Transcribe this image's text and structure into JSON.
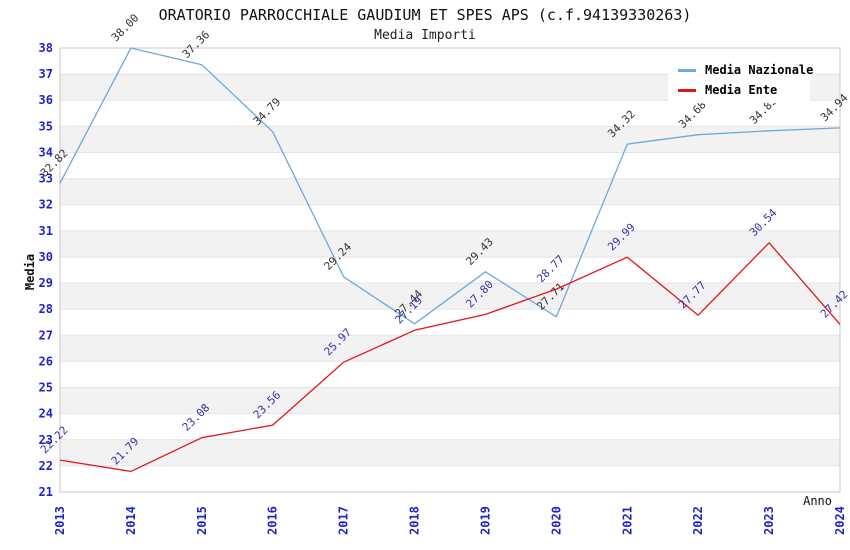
{
  "chart_data": {
    "type": "line",
    "title": "ORATORIO PARROCCHIALE GAUDIUM ET SPES APS (c.f.94139330263)",
    "subtitle": "Media Importi",
    "xlabel": "Anno",
    "ylabel": "Media",
    "x": [
      "2013",
      "2014",
      "2015",
      "2016",
      "2017",
      "2018",
      "2019",
      "2020",
      "2021",
      "2022",
      "2023",
      "2024"
    ],
    "ylim": [
      21,
      38
    ],
    "y_tick_step": 1,
    "grid": "horizontal-bands-alternating",
    "legend_position": "top-right-inside",
    "series": [
      {
        "name": "Media Nazionale",
        "color": "#6FA8DC",
        "label_color": "#333333",
        "values": [
          32.82,
          38.0,
          37.36,
          34.79,
          29.24,
          27.44,
          29.43,
          27.71,
          34.32,
          34.68,
          34.83,
          34.94
        ],
        "labels": [
          "32.82",
          "38.00",
          "37.36",
          "34.79",
          "29.24",
          "27.44",
          "29.43",
          "27.71",
          "34.32",
          "34.68",
          "34.83",
          "34.94"
        ]
      },
      {
        "name": "Media Ente",
        "color": "#E01818",
        "label_color": "#3333AA",
        "values": [
          22.22,
          21.79,
          23.08,
          23.56,
          25.97,
          27.19,
          27.8,
          28.77,
          29.99,
          27.77,
          30.54,
          27.42
        ],
        "labels": [
          "22.22",
          "21.79",
          "23.08",
          "23.56",
          "25.97",
          "27.19",
          "27.80",
          "28.77",
          "29.99",
          "27.77",
          "30.54",
          "27.42"
        ]
      }
    ],
    "colors": {
      "axis_text": "#2222CC",
      "band": "#F2F2F2",
      "grid_line": "#E4E4E4",
      "plot_border": "#C9C9C9",
      "title_text": "#111111"
    }
  }
}
